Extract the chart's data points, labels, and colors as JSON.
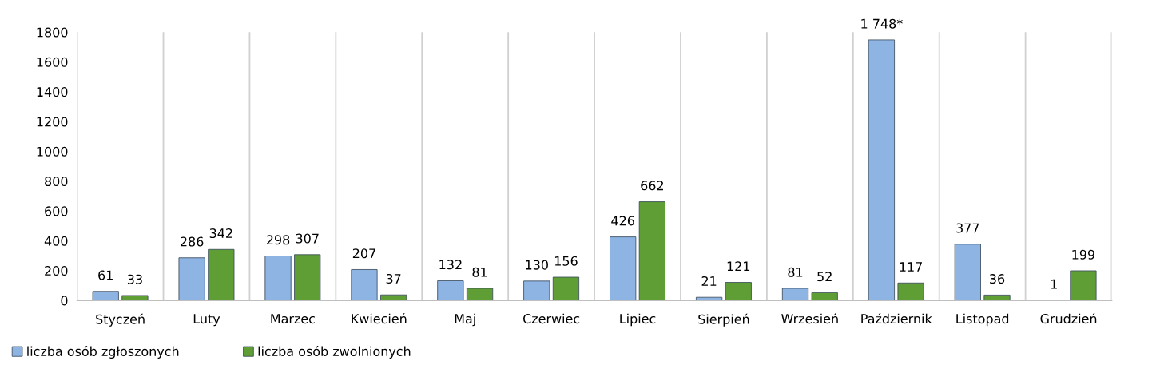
{
  "chart_data": {
    "type": "bar",
    "categories": [
      "Styczeń",
      "Luty",
      "Marzec",
      "Kwiecień",
      "Maj",
      "Czerwiec",
      "Lipiec",
      "Sierpień",
      "Wrzesień",
      "Październik",
      "Listopad",
      "Grudzień"
    ],
    "series": [
      {
        "name": "liczba osób zgłoszonych",
        "color": "#8eb4e3",
        "values": [
          61,
          286,
          298,
          207,
          132,
          130,
          426,
          21,
          81,
          1748,
          377,
          1
        ],
        "value_labels": [
          "61",
          "286",
          "298",
          "207",
          "132",
          "130",
          "426",
          "21",
          "81",
          "1 748*",
          "377",
          "1"
        ]
      },
      {
        "name": "liczba osób zwolnionych",
        "color": "#5f9e35",
        "values": [
          33,
          342,
          307,
          37,
          81,
          156,
          662,
          121,
          52,
          117,
          36,
          199
        ],
        "value_labels": [
          "33",
          "342",
          "307",
          "37",
          "81",
          "156",
          "662",
          "121",
          "52",
          "117",
          "36",
          "199"
        ]
      }
    ],
    "ylim": [
      0,
      1800
    ],
    "yticks": [
      0,
      200,
      400,
      600,
      800,
      1000,
      1200,
      1400,
      1600,
      1800
    ],
    "grid": "x",
    "legend": "bottom left"
  }
}
